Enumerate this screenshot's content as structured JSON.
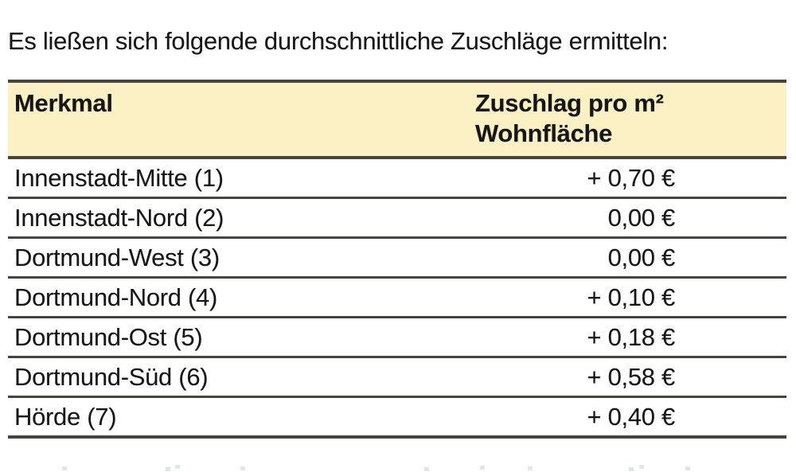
{
  "colors": {
    "page_bg": "#ffffff",
    "header_bg": "#fcf0c5",
    "border": "#45453f",
    "text": "#161616"
  },
  "intro": {
    "text": "Es ließen sich folgende durchschnittliche Zuschläge ermitteln:"
  },
  "table": {
    "header": {
      "merkmal": "Merkmal",
      "zuschlag_line1": "Zuschlag pro m²",
      "zuschlag_line2": "Wohnfläche"
    },
    "rows": [
      {
        "label": "Innenstadt-Mitte (1)",
        "value": "+ 0,70 €"
      },
      {
        "label": "Innenstadt-Nord (2)",
        "value": "0,00 €"
      },
      {
        "label": "Dortmund-West (3)",
        "value": "0,00 €"
      },
      {
        "label": "Dortmund-Nord (4)",
        "value": "+ 0,10 €"
      },
      {
        "label": "Dortmund-Ost (5)",
        "value": "+ 0,18 €"
      },
      {
        "label": "Dortmund-Süd (6)",
        "value": "+ 0,58 €"
      },
      {
        "label": "Hörde (7)",
        "value": "+ 0,40 €"
      }
    ]
  }
}
